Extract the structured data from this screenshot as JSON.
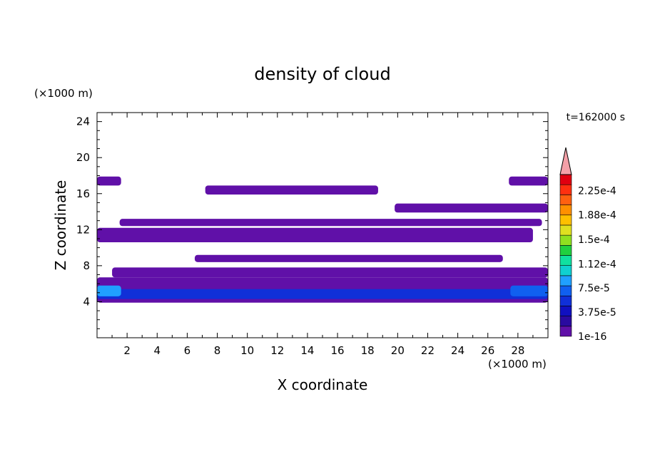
{
  "chart_data": {
    "type": "heatmap",
    "title": "density of cloud",
    "time_label": "t=162000 s",
    "xlabel": "X coordinate",
    "ylabel": "Z coordinate",
    "x_unit": "(×1000 m)",
    "y_unit": "(×1000 m)",
    "xlim": [
      0,
      30
    ],
    "ylim": [
      0,
      25
    ],
    "x_ticks": [
      2,
      4,
      6,
      8,
      10,
      12,
      14,
      16,
      18,
      20,
      22,
      24,
      26,
      28
    ],
    "y_ticks": [
      4,
      8,
      12,
      16,
      20,
      24
    ],
    "colorbar": {
      "labels": [
        "2.25e-4",
        "1.88e-4",
        "1.5e-4",
        "1.12e-4",
        "7.5e-5",
        "3.75e-5",
        "1e-16"
      ],
      "label_levels": [
        0.000225,
        0.000188,
        0.00015,
        0.000112,
        7.5e-05,
        3.75e-05,
        1e-16
      ],
      "range": [
        0,
        0.00025
      ],
      "extend": "max",
      "extend_color": "#f4a0a8",
      "colors": [
        "#6010a8",
        "#2a0aa0",
        "#1010c0",
        "#1030d8",
        "#1060f0",
        "#20a0ff",
        "#10d0d0",
        "#10e0a0",
        "#20d040",
        "#90e020",
        "#e0e020",
        "#ffc000",
        "#ff9000",
        "#ff6010",
        "#ff3010",
        "#e00010"
      ]
    },
    "regions": [
      {
        "level": 0,
        "x": [
          0,
          30
        ],
        "z": [
          3.9,
          6.7
        ]
      },
      {
        "level": 3,
        "x": [
          0,
          30
        ],
        "z": [
          4.3,
          5.4
        ]
      },
      {
        "level": 5,
        "x": [
          0,
          1.6
        ],
        "z": [
          4.6,
          5.8
        ]
      },
      {
        "level": 4,
        "x": [
          27.5,
          30
        ],
        "z": [
          4.6,
          5.8
        ]
      },
      {
        "level": 0,
        "x": [
          0,
          1.6
        ],
        "z": [
          16.9,
          17.9
        ]
      },
      {
        "level": 0,
        "x": [
          27.4,
          30
        ],
        "z": [
          16.9,
          17.9
        ]
      },
      {
        "level": 0,
        "x": [
          7.2,
          18.7
        ],
        "z": [
          15.9,
          16.9
        ]
      },
      {
        "level": 0,
        "x": [
          19.8,
          30
        ],
        "z": [
          13.9,
          14.9
        ]
      },
      {
        "level": 0,
        "x": [
          1.5,
          29.6
        ],
        "z": [
          12.4,
          13.2
        ]
      },
      {
        "level": 0,
        "x": [
          0,
          29
        ],
        "z": [
          10.6,
          12.2
        ]
      },
      {
        "level": 0,
        "x": [
          6.5,
          27
        ],
        "z": [
          8.4,
          9.2
        ]
      },
      {
        "level": 0,
        "x": [
          1,
          30
        ],
        "z": [
          6.7,
          7.8
        ]
      }
    ]
  }
}
